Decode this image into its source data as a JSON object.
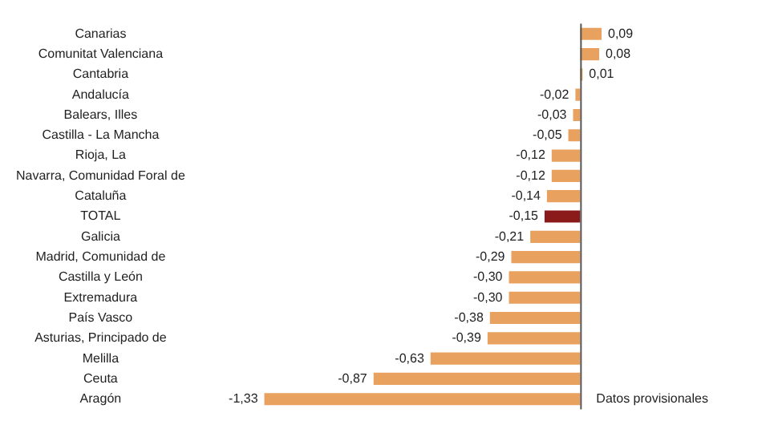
{
  "chart_data": {
    "type": "bar",
    "orientation": "horizontal",
    "categories": [
      "Canarias",
      "Comunitat Valenciana",
      "Cantabria",
      "Andalucía",
      "Balears, Illes",
      "Castilla - La Mancha",
      "Rioja, La",
      "Navarra, Comunidad Foral de",
      "Cataluña",
      "TOTAL",
      "Galicia",
      "Madrid, Comunidad de",
      "Castilla y León",
      "Extremadura",
      "País Vasco",
      "Asturias, Principado de",
      "Melilla",
      "Ceuta",
      "Aragón"
    ],
    "values": [
      0.09,
      0.08,
      0.01,
      -0.02,
      -0.03,
      -0.05,
      -0.12,
      -0.12,
      -0.14,
      -0.15,
      -0.21,
      -0.29,
      -0.3,
      -0.3,
      -0.38,
      -0.39,
      -0.63,
      -0.87,
      -1.33
    ],
    "value_labels": [
      "0,09",
      "0,08",
      "0,01",
      "-0,02",
      "-0,03",
      "-0,05",
      "-0,12",
      "-0,12",
      "-0,14",
      "-0,15",
      "-0,21",
      "-0,29",
      "-0,30",
      "-0,30",
      "-0,38",
      "-0,39",
      "-0,63",
      "-0,87",
      "-1,33"
    ],
    "colors": [
      "#e9a15f",
      "#e9a15f",
      "#e9a15f",
      "#e9a15f",
      "#e9a15f",
      "#e9a15f",
      "#e9a15f",
      "#e9a15f",
      "#e9a15f",
      "#8b1a1a",
      "#e9a15f",
      "#e9a15f",
      "#e9a15f",
      "#e9a15f",
      "#e9a15f",
      "#e9a15f",
      "#e9a15f",
      "#e9a15f",
      "#e9a15f"
    ],
    "annotations": [
      "Datos provisionales"
    ],
    "legend": false
  }
}
